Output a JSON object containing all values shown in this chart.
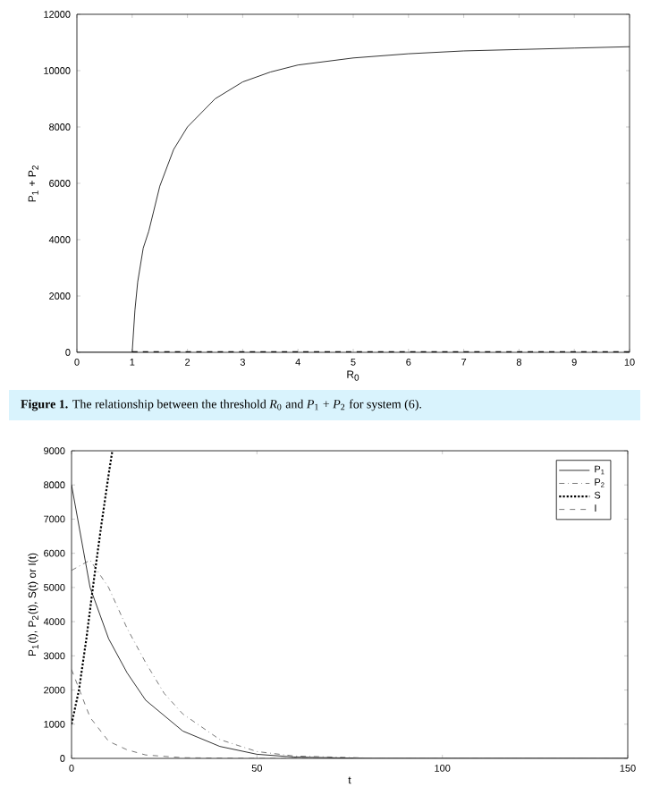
{
  "chart_data": [
    {
      "type": "line",
      "xlabel": "R$_{0}$",
      "ylabel": "P$_{1}$ + P$_{2}$",
      "xlim": [
        0,
        10
      ],
      "xticks": [
        0,
        1,
        2,
        3,
        4,
        5,
        6,
        7,
        8,
        9,
        10
      ],
      "ylim": [
        0,
        12000
      ],
      "yticks": [
        0,
        2000,
        4000,
        6000,
        8000,
        10000,
        12000
      ],
      "grid": false,
      "legend": false,
      "series": [
        {
          "color": "#000000",
          "line_style": "solid",
          "x": [
            0,
            1,
            1.05,
            1.1,
            1.2,
            1.3,
            1.5,
            1.75,
            2,
            2.5,
            3,
            3.5,
            4,
            5,
            6,
            7,
            8,
            9,
            10
          ],
          "values": [
            0,
            0,
            1500,
            2500,
            3700,
            4300,
            5900,
            7200,
            8000,
            9000,
            9600,
            9950,
            10200,
            10450,
            10600,
            10700,
            10750,
            10800,
            10850
          ]
        },
        {
          "color": "#000000",
          "line_style": "dashed",
          "x": [
            1,
            10
          ],
          "values": [
            0,
            0
          ]
        }
      ],
      "annotations": [
        "**Figure 1.** The relationship between the threshold *R*$_{0}$ and *P*$_{1}$ + *P*$_{2}$ for system (6)."
      ]
    },
    {
      "type": "line",
      "xlabel": "t",
      "ylabel": "P$_{1}$(t), P$_{2}$(t), S(t) or I(t)",
      "xlim": [
        0,
        150
      ],
      "xticks": [
        0,
        50,
        100,
        150
      ],
      "ylim": [
        0,
        9000
      ],
      "yticks": [
        0,
        1000,
        2000,
        3000,
        4000,
        5000,
        6000,
        7000,
        8000,
        9000
      ],
      "grid": false,
      "legend": "top right",
      "series": [
        {
          "name": "P$_{1}$",
          "color": "#000000",
          "line_style": "solid",
          "x": [
            0,
            5,
            10,
            15,
            20,
            30,
            40,
            50,
            60,
            80,
            150
          ],
          "values": [
            8000,
            5000,
            3500,
            2500,
            1700,
            800,
            350,
            120,
            40,
            0,
            0
          ]
        },
        {
          "name": "P$_{2}$",
          "color": "#555555",
          "line_style": "dashdot",
          "x": [
            0,
            5,
            10,
            15,
            20,
            25,
            30,
            40,
            50,
            60,
            80,
            150
          ],
          "values": [
            5500,
            5800,
            5000,
            3800,
            2800,
            1900,
            1300,
            550,
            200,
            70,
            10,
            0
          ]
        },
        {
          "name": "S",
          "color": "#000000",
          "line_style": "dotted",
          "x": [
            0,
            2,
            4,
            6,
            8,
            10,
            11
          ],
          "values": [
            1000,
            2000,
            3500,
            5200,
            6800,
            8300,
            9000
          ]
        },
        {
          "name": "I",
          "color": "#555555",
          "line_style": "dashed",
          "x": [
            0,
            5,
            10,
            15,
            20,
            30,
            50,
            150
          ],
          "values": [
            2600,
            1200,
            500,
            250,
            100,
            20,
            0,
            0
          ]
        }
      ]
    }
  ]
}
